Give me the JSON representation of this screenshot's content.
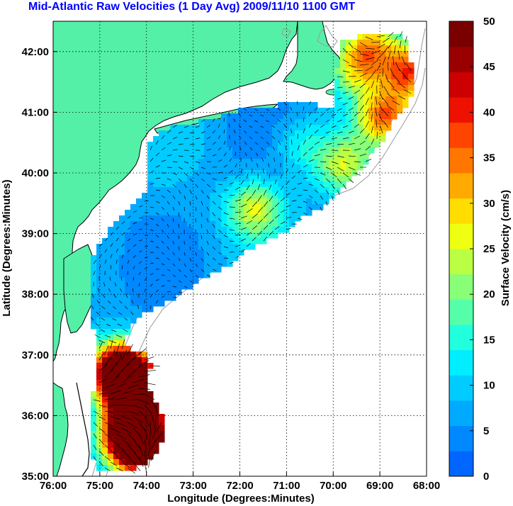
{
  "title": "Mid-Atlantic Raw Velocities (1 Day Avg) 2009/11/10 1100 GMT",
  "map": {
    "xlabel": "Longitude (Degrees:Minutes)",
    "ylabel": "Latitude (Degrees:Minutes)",
    "lon_range": [
      -76,
      -68
    ],
    "lat_range": [
      35,
      42.5
    ],
    "x_ticks": [
      {
        "value": -76,
        "label": "76:00"
      },
      {
        "value": -75,
        "label": "75:00"
      },
      {
        "value": -74,
        "label": "74:00"
      },
      {
        "value": -73,
        "label": "73:00"
      },
      {
        "value": -72,
        "label": "72:00"
      },
      {
        "value": -71,
        "label": "71:00"
      },
      {
        "value": -70,
        "label": "70:00"
      },
      {
        "value": -69,
        "label": "69:00"
      },
      {
        "value": -68,
        "label": "68:00"
      }
    ],
    "y_ticks": [
      {
        "value": 35,
        "label": "35:00"
      },
      {
        "value": 36,
        "label": "36:00"
      },
      {
        "value": 37,
        "label": "37:00"
      },
      {
        "value": 38,
        "label": "38:00"
      },
      {
        "value": 39,
        "label": "39:00"
      },
      {
        "value": 40,
        "label": "40:00"
      },
      {
        "value": 41,
        "label": "41:00"
      },
      {
        "value": 42,
        "label": "42:00"
      }
    ],
    "grid": true,
    "land_color": "#55f0a8",
    "coast_color": "#000000",
    "bathymetry_color": "#9a9a9a"
  },
  "colorbar": {
    "label": "Surface Velocity (cm/s)",
    "min": 0,
    "max": 50,
    "ticks": [
      {
        "value": 0,
        "label": "0"
      },
      {
        "value": 5,
        "label": "5"
      },
      {
        "value": 10,
        "label": "10"
      },
      {
        "value": 15,
        "label": "15"
      },
      {
        "value": 20,
        "label": "20"
      },
      {
        "value": 25,
        "label": "25"
      },
      {
        "value": 30,
        "label": "30"
      },
      {
        "value": 35,
        "label": "35"
      },
      {
        "value": 40,
        "label": "40"
      },
      {
        "value": 45,
        "label": "45"
      },
      {
        "value": 50,
        "label": "50"
      }
    ],
    "colors": [
      "#0066ff",
      "#0088ff",
      "#00aaff",
      "#00ccff",
      "#00eeff",
      "#22ffdd",
      "#55ffaa",
      "#88ff77",
      "#bbff44",
      "#eeff11",
      "#ffdd00",
      "#ffaa00",
      "#ff7700",
      "#ff4400",
      "#ee1100",
      "#cc0000",
      "#990000",
      "#7a0000"
    ]
  }
}
